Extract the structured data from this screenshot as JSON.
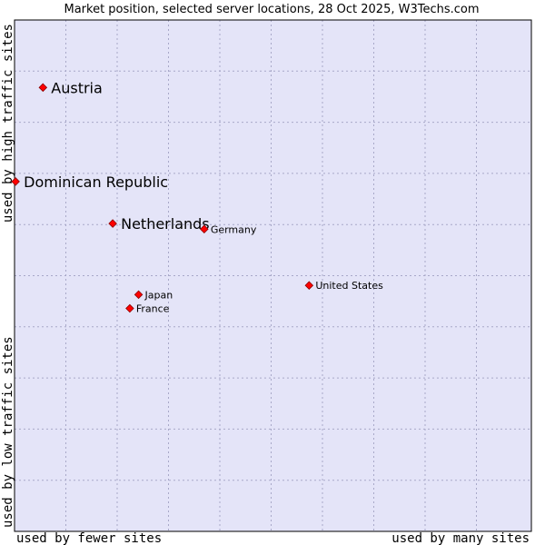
{
  "chart_data": {
    "type": "scatter",
    "title": "Market position, selected server locations, 28 Oct 2025, W3Techs.com",
    "xlabel_left": "used by fewer sites",
    "xlabel_right": "used by many sites",
    "ylabel_bottom": "used by low traffic sites",
    "ylabel_top": "used by high traffic sites",
    "xlim": [
      0,
      100
    ],
    "ylim": [
      0,
      100
    ],
    "grid": true,
    "point_color": "#ff0000",
    "background_color": "#e4e4f8",
    "points": [
      {
        "label": "Austria",
        "x": 5.5,
        "y": 86.8,
        "emphasis": true
      },
      {
        "label": "Dominican Republic",
        "x": 0.2,
        "y": 68.4,
        "emphasis": true
      },
      {
        "label": "Netherlands",
        "x": 19.0,
        "y": 60.2,
        "emphasis": true
      },
      {
        "label": "Germany",
        "x": 36.7,
        "y": 59.1,
        "emphasis": false
      },
      {
        "label": "United States",
        "x": 57.0,
        "y": 48.1,
        "emphasis": false
      },
      {
        "label": "Japan",
        "x": 24.0,
        "y": 46.3,
        "emphasis": false
      },
      {
        "label": "France",
        "x": 22.3,
        "y": 43.6,
        "emphasis": false
      }
    ]
  }
}
